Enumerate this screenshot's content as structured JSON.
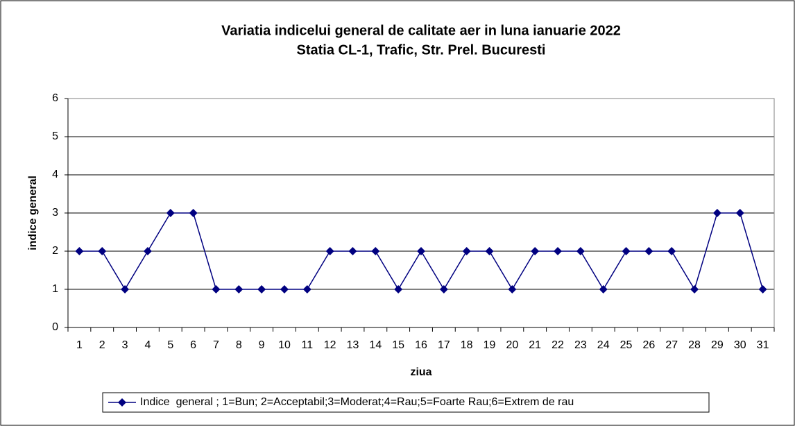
{
  "chart_data": {
    "type": "line",
    "title": [
      "Variatia indicelui general de calitate aer in luna ianuarie 2022",
      "Statia CL-1, Trafic, Str. Prel. Bucuresti"
    ],
    "x_label": "ziua",
    "y_label": "indice general",
    "categories": [
      "1",
      "2",
      "3",
      "4",
      "5",
      "6",
      "7",
      "8",
      "9",
      "10",
      "11",
      "12",
      "13",
      "14",
      "15",
      "16",
      "17",
      "18",
      "19",
      "20",
      "21",
      "22",
      "23",
      "24",
      "25",
      "26",
      "27",
      "28",
      "29",
      "30",
      "31"
    ],
    "series": [
      {
        "name": "Indice  general ; 1=Bun; 2=Acceptabil;3=Moderat;4=Rau;5=Foarte Rau;6=Extrem de rau",
        "color": "#000080",
        "values": [
          2,
          2,
          1,
          2,
          3,
          3,
          1,
          1,
          1,
          1,
          1,
          2,
          2,
          2,
          1,
          2,
          1,
          2,
          2,
          1,
          2,
          2,
          2,
          1,
          2,
          2,
          2,
          1,
          3,
          3,
          1
        ]
      }
    ],
    "ylim": [
      0,
      6
    ],
    "yticks": [
      0,
      1,
      2,
      3,
      4,
      5,
      6
    ],
    "grid": true,
    "legend": "bottom"
  }
}
